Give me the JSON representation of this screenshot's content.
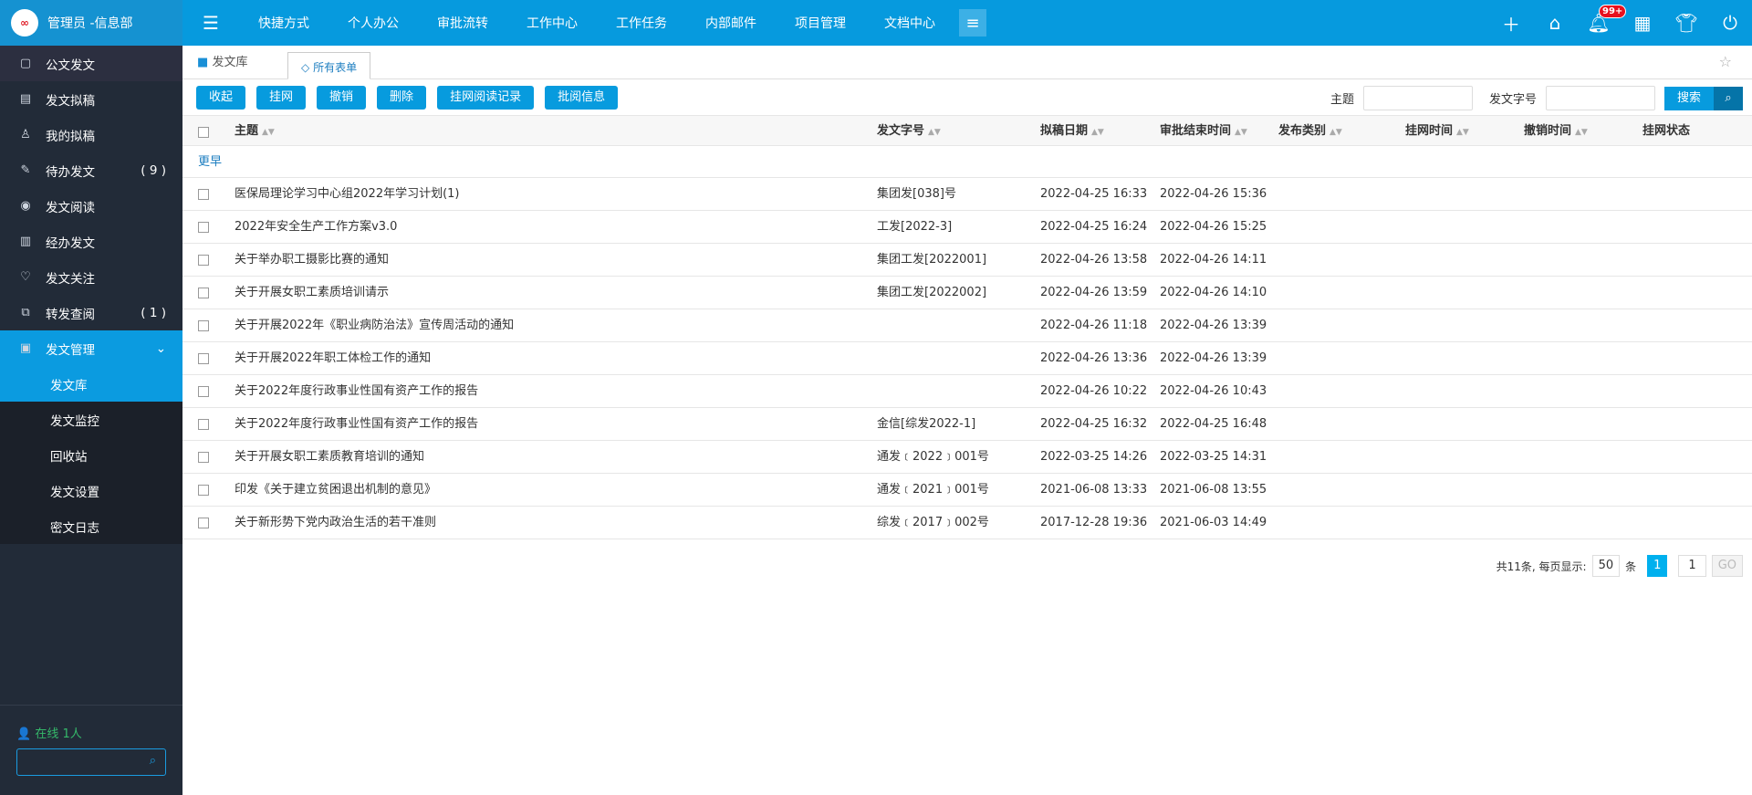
{
  "user": {
    "name": "管理员 -信息部"
  },
  "sidebar": {
    "items": [
      {
        "label": "公文发文",
        "icon": "folder-doc-icon"
      },
      {
        "label": "发文拟稿",
        "icon": "clipboard-icon"
      },
      {
        "label": "我的拟稿",
        "icon": "user-icon"
      },
      {
        "label": "待办发文",
        "icon": "edit-icon",
        "count": "( 9 )"
      },
      {
        "label": "发文阅读",
        "icon": "eye-icon"
      },
      {
        "label": "经办发文",
        "icon": "doc-list-icon"
      },
      {
        "label": "发文关注",
        "icon": "heart-icon"
      },
      {
        "label": "转发查阅",
        "icon": "forward-icon",
        "count": "( 1 )"
      },
      {
        "label": "发文管理",
        "icon": "folder-icon"
      }
    ],
    "sub": [
      "发文库",
      "发文监控",
      "回收站",
      "发文设置",
      "密文日志"
    ],
    "online": "在线  1人"
  },
  "nav": [
    "快捷方式",
    "个人办公",
    "审批流转",
    "工作中心",
    "工作任务",
    "内部邮件",
    "项目管理",
    "文档中心"
  ],
  "badge": "99+",
  "tabs": {
    "home": "发文库",
    "active": "所有表单"
  },
  "toolbar": [
    "收起",
    "挂网",
    "撤销",
    "删除",
    "挂网阅读记录",
    "批阅信息"
  ],
  "search": {
    "subject_label": "主题",
    "number_label": "发文字号",
    "button": "搜索"
  },
  "columns": [
    "主题",
    "发文字号",
    "拟稿日期",
    "审批结束时间",
    "发布类别",
    "挂网时间",
    "撤销时间",
    "挂网状态"
  ],
  "group": "更早",
  "rows": [
    [
      "医保局理论学习中心组2022年学习计划(1)",
      "集团发[038]号",
      "2022-04-25 16:33",
      "2022-04-26 15:36"
    ],
    [
      "2022年安全生产工作方案v3.0",
      "工发[2022-3]",
      "2022-04-25 16:24",
      "2022-04-26 15:25"
    ],
    [
      "关于举办职工摄影比赛的通知",
      "集团工发[2022001]",
      "2022-04-26 13:58",
      "2022-04-26 14:11"
    ],
    [
      "关于开展女职工素质培训请示",
      "集团工发[2022002]",
      "2022-04-26 13:59",
      "2022-04-26 14:10"
    ],
    [
      "关于开展2022年《职业病防治法》宣传周活动的通知",
      "",
      "2022-04-26 11:18",
      "2022-04-26 13:39"
    ],
    [
      "关于开展2022年职工体检工作的通知",
      "",
      "2022-04-26 13:36",
      "2022-04-26 13:39"
    ],
    [
      "关于2022年度行政事业性国有资产工作的报告",
      "",
      "2022-04-26 10:22",
      "2022-04-26 10:43"
    ],
    [
      "关于2022年度行政事业性国有资产工作的报告",
      "金信[综发2022-1]",
      "2022-04-25 16:32",
      "2022-04-25 16:48"
    ],
    [
      "关于开展女职工素质教育培训的通知",
      "通发﹝2022﹞001号",
      "2022-03-25 14:26",
      "2022-03-25 14:31"
    ],
    [
      "印发《关于建立贫困退出机制的意见》",
      "通发﹝2021﹞001号",
      "2021-06-08 13:33",
      "2021-06-08 13:55"
    ],
    [
      "关于新形势下党内政治生活的若干准则",
      "综发﹝2017﹞002号",
      "2017-12-28 19:36",
      "2021-06-03 14:49"
    ]
  ],
  "pagination": {
    "total": "共11条, 每页显示:",
    "per_page": "50",
    "unit": "条",
    "current": "1",
    "goto": "1",
    "go": "GO"
  }
}
